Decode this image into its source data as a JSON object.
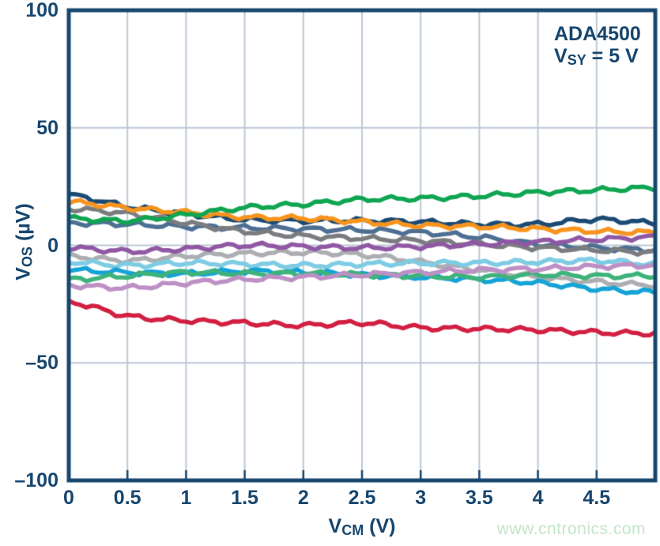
{
  "annotation": {
    "line1": "ADA4500",
    "line2_pre": "V",
    "line2_sub": "SY",
    "line2_post": " = 5 V"
  },
  "watermark": {
    "text": "www.cntronics.com",
    "color": "#c3e6c8"
  },
  "chart_data": {
    "type": "line",
    "title": "",
    "xlabel_pre": "V",
    "xlabel_sub": "CM",
    "xlabel_post": " (V)",
    "ylabel_pre": "V",
    "ylabel_sub": "OS",
    "ylabel_post": " (µV)",
    "xlim": [
      0,
      5
    ],
    "ylim": [
      -100,
      100
    ],
    "x_ticks": [
      0,
      0.5,
      1,
      1.5,
      2,
      2.5,
      3,
      3.5,
      4,
      4.5
    ],
    "x_tick_labels": [
      "0",
      "0.5",
      "1",
      "1.5",
      "2",
      "2.5",
      "3",
      "3.5",
      "4",
      "4.5"
    ],
    "y_ticks": [
      100,
      50,
      0,
      -50,
      -100
    ],
    "y_tick_labels": [
      "100",
      "50",
      "0",
      "–50",
      "–100"
    ],
    "grid": true,
    "legend": "none",
    "grid_color": "#bcc8d6",
    "axis_color": "#17466e",
    "x": [
      0,
      0.5,
      1,
      1.5,
      2,
      2.5,
      3,
      3.5,
      4,
      4.5,
      5
    ],
    "series": [
      {
        "name": "unit-navy",
        "color": "#1b4a74",
        "values": [
          21.5,
          16.5,
          13.5,
          11,
          10.5,
          10.5,
          10,
          9,
          9,
          11,
          9.5
        ]
      },
      {
        "name": "unit-steel",
        "color": "#4d6f93",
        "values": [
          9.5,
          9,
          8,
          7.5,
          7,
          6.5,
          5.5,
          3.5,
          0.5,
          -1,
          -2
        ]
      },
      {
        "name": "unit-gray",
        "color": "#7a7c7f",
        "values": [
          15.5,
          13.5,
          9.5,
          6,
          4,
          3,
          2,
          0.5,
          -1,
          -2,
          -3
        ]
      },
      {
        "name": "unit-orange",
        "color": "#f7941e",
        "values": [
          18.5,
          16,
          14,
          12,
          11.5,
          10,
          8.5,
          8,
          7,
          6,
          5.5
        ]
      },
      {
        "name": "unit-lightgray",
        "color": "#acaeb1",
        "values": [
          -4.5,
          -6.5,
          -4.5,
          -3.5,
          -3,
          -4,
          -7,
          -10.5,
          -13.5,
          -15.5,
          -17
        ]
      },
      {
        "name": "unit-sky",
        "color": "#7ecce3",
        "values": [
          -7,
          -8.5,
          -7.5,
          -8,
          -8.5,
          -8,
          -7.5,
          -7.5,
          -7,
          -6.5,
          -8
        ]
      },
      {
        "name": "unit-cyan",
        "color": "#14a3d6",
        "values": [
          -10.5,
          -11.5,
          -12,
          -11,
          -11.5,
          -12.5,
          -13.5,
          -14.5,
          -16,
          -18.5,
          -20
        ]
      },
      {
        "name": "unit-seagreen",
        "color": "#3eb27b",
        "values": [
          -14.5,
          -13,
          -11.5,
          -12,
          -12,
          -12.5,
          -13,
          -13.5,
          -12.5,
          -13,
          -13
        ]
      },
      {
        "name": "unit-plum",
        "color": "#bd90c5",
        "values": [
          -17,
          -18,
          -16,
          -14.5,
          -13.5,
          -12.5,
          -11.5,
          -10.5,
          -10,
          -9,
          -8.5
        ]
      },
      {
        "name": "unit-purple",
        "color": "#9058a4",
        "values": [
          -1,
          -2.5,
          -1.5,
          0,
          -0.5,
          -1,
          -0.5,
          0.5,
          1.5,
          2.5,
          3.5
        ]
      },
      {
        "name": "unit-green",
        "color": "#0fa551",
        "values": [
          11.5,
          10.5,
          13,
          16,
          17.5,
          19.5,
          20,
          21,
          22.5,
          23.5,
          24.5
        ]
      },
      {
        "name": "unit-crimson",
        "color": "#d21f42",
        "values": [
          -24,
          -30,
          -32,
          -33,
          -34,
          -33,
          -35,
          -35.5,
          -36,
          -37,
          -37.5
        ]
      }
    ],
    "style": {
      "line_width": 5.4,
      "wiggle_amplitude": 0.85,
      "wiggle_wavelength": 0.3,
      "grid_line_width": 2,
      "border_line_width": 5,
      "tick_stub_length": 11
    }
  }
}
